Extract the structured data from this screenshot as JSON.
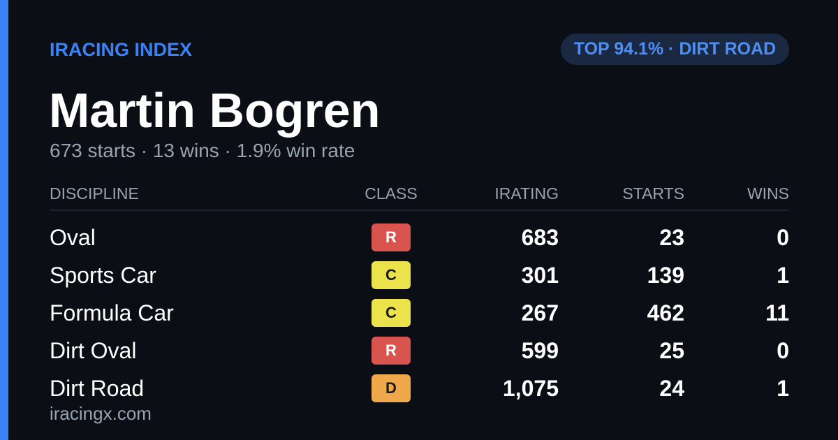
{
  "header": {
    "brand": "IRACING INDEX",
    "badge": "TOP 94.1% · DIRT ROAD"
  },
  "driver": {
    "name": "Martin Bogren",
    "summary": "673 starts · 13 wins · 1.9% win rate"
  },
  "table": {
    "columns": [
      "DISCIPLINE",
      "CLASS",
      "IRATING",
      "STARTS",
      "WINS"
    ],
    "rows": [
      [
        "Oval",
        "R",
        "683",
        "23",
        "0"
      ],
      [
        "Sports Car",
        "C",
        "301",
        "139",
        "1"
      ],
      [
        "Formula Car",
        "C",
        "267",
        "462",
        "11"
      ],
      [
        "Dirt Oval",
        "R",
        "599",
        "25",
        "0"
      ],
      [
        "Dirt Road",
        "D",
        "1,075",
        "24",
        "1"
      ]
    ]
  },
  "class_colors": {
    "R": "#d9534f",
    "C": "#ebe24c",
    "D": "#f0a94a"
  },
  "footer": {
    "site": "iracingx.com"
  }
}
